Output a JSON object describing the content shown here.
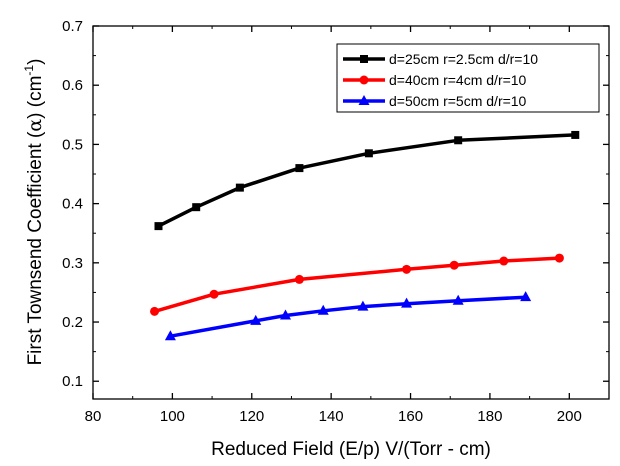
{
  "chart_data": {
    "type": "line",
    "xlabel": "Reduced Field (E/p) V/(Torr - cm)",
    "ylabel": {
      "main": "First Townsend Coefficient (",
      "alpha": "α",
      "unit_open": ") (cm",
      "exponent": "-1",
      "unit_close": ")"
    },
    "xlim": [
      80,
      210
    ],
    "ylim": [
      0.07,
      0.7
    ],
    "x_ticks": [
      80,
      100,
      120,
      140,
      160,
      180,
      200
    ],
    "x_tick_labels": [
      "80",
      "100",
      "120",
      "140",
      "160",
      "180",
      "200"
    ],
    "y_ticks": [
      0.1,
      0.2,
      0.3,
      0.4,
      0.5,
      0.6,
      0.7
    ],
    "y_tick_labels": [
      "0.1",
      "0.2",
      "0.3",
      "0.4",
      "0.5",
      "0.6",
      "0.7"
    ],
    "grid": false,
    "legend_position": "top-right",
    "series": [
      {
        "name": "d=25cm r=2.5cm d/r=10",
        "color": "#000000",
        "marker": "square",
        "points": [
          [
            96.5,
            0.362
          ],
          [
            106,
            0.394
          ],
          [
            117,
            0.427
          ],
          [
            132,
            0.46
          ],
          [
            149.5,
            0.485
          ],
          [
            172,
            0.507
          ],
          [
            201.5,
            0.516
          ]
        ]
      },
      {
        "name": "d=40cm r=4cm d/r=10",
        "color": "#ff0000",
        "marker": "circle",
        "points": [
          [
            95.5,
            0.218
          ],
          [
            110.5,
            0.247
          ],
          [
            132,
            0.272
          ],
          [
            159,
            0.289
          ],
          [
            171,
            0.296
          ],
          [
            183.5,
            0.303
          ],
          [
            197.5,
            0.308
          ]
        ]
      },
      {
        "name": "d=50cm r=5cm d/r=10",
        "color": "#0000ff",
        "marker": "triangle",
        "points": [
          [
            99.5,
            0.176
          ],
          [
            121,
            0.202
          ],
          [
            128.5,
            0.211
          ],
          [
            138,
            0.219
          ],
          [
            148,
            0.226
          ],
          [
            159,
            0.231
          ],
          [
            172,
            0.236
          ],
          [
            189,
            0.242
          ]
        ]
      }
    ]
  }
}
